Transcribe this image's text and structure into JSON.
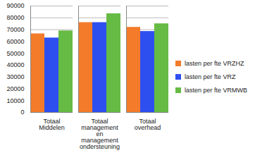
{
  "chart_data": {
    "type": "bar",
    "categories": [
      "Totaal Middelen",
      "Totaal management en management ondersteuning",
      "Totaal overhead"
    ],
    "series": [
      {
        "name": "lasten per fte VRZHZ",
        "color": "#f47b2a",
        "values": [
          66500,
          76000,
          72000
        ]
      },
      {
        "name": "lasten per fte VRZ",
        "color": "#2e4ff0",
        "values": [
          63000,
          76000,
          68500
        ]
      },
      {
        "name": "lasten per fte VRMWB",
        "color": "#66bb45",
        "values": [
          69000,
          83500,
          75000
        ]
      }
    ],
    "ylim": [
      0,
      90000
    ],
    "yticks": [
      0,
      10000,
      20000,
      30000,
      40000,
      50000,
      60000,
      70000,
      80000,
      90000
    ],
    "grid": true,
    "legend": "right"
  }
}
